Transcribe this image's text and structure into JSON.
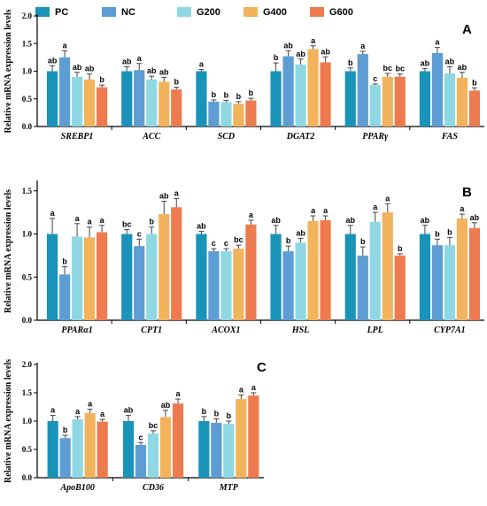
{
  "legend": {
    "items": [
      {
        "label": "PC",
        "color": "#1a93b8"
      },
      {
        "label": "NC",
        "color": "#5d9dd4"
      },
      {
        "label": "G200",
        "color": "#8fd8e3"
      },
      {
        "label": "G400",
        "color": "#f2b35c"
      },
      {
        "label": "G600",
        "color": "#ee7b4f"
      }
    ]
  },
  "chart_data": [
    {
      "panel": "A",
      "type": "bar",
      "ylabel": "Relative mRNA expression levels",
      "ylim": [
        0,
        2.0
      ],
      "yticks": [
        "0.0",
        "0.5",
        "1.0",
        "1.5",
        "2.0"
      ],
      "ytick_values": [
        0,
        0.5,
        1.0,
        1.5,
        2.0
      ],
      "categories": [
        "SREBP1",
        "ACC",
        "SCD",
        "DGAT2",
        "PPARγ",
        "FAS"
      ],
      "series": [
        {
          "name": "PC",
          "values": [
            1.0,
            1.0,
            1.0,
            1.0,
            1.0,
            1.0
          ],
          "errors": [
            0.1,
            0.08,
            0.03,
            0.15,
            0.06,
            0.05
          ]
        },
        {
          "name": "NC",
          "values": [
            1.25,
            1.02,
            0.45,
            1.27,
            1.31,
            1.33
          ],
          "errors": [
            0.12,
            0.12,
            0.03,
            0.1,
            0.05,
            0.1
          ]
        },
        {
          "name": "G200",
          "values": [
            0.9,
            0.85,
            0.44,
            1.12,
            0.75,
            0.96
          ],
          "errors": [
            0.08,
            0.06,
            0.03,
            0.1,
            0.02,
            0.12
          ]
        },
        {
          "name": "G400",
          "values": [
            0.85,
            0.81,
            0.41,
            1.4,
            0.9,
            0.88
          ],
          "errors": [
            0.1,
            0.08,
            0.04,
            0.06,
            0.06,
            0.1
          ]
        },
        {
          "name": "G600",
          "values": [
            0.71,
            0.67,
            0.47,
            1.16,
            0.9,
            0.65
          ],
          "errors": [
            0.04,
            0.04,
            0.04,
            0.1,
            0.05,
            0.05
          ]
        }
      ],
      "letters": [
        [
          "ab",
          "a",
          "ab",
          "ab",
          "b"
        ],
        [
          "ab",
          "a",
          "ab",
          "ab",
          "b"
        ],
        [
          "a",
          "b",
          "b",
          "b",
          "b"
        ],
        [
          "b",
          "ab",
          "ab",
          "a",
          "ab"
        ],
        [
          "b",
          "a",
          "c",
          "bc",
          "bc"
        ],
        [
          "ab",
          "a",
          "ab",
          "ab",
          "b"
        ]
      ]
    },
    {
      "panel": "B",
      "type": "bar",
      "ylabel": "Relative mRNA expression levels",
      "ylim": [
        0,
        1.6
      ],
      "yticks": [
        "0.0",
        "0.5",
        "1.0",
        "1.5"
      ],
      "ytick_values": [
        0,
        0.5,
        1.0,
        1.5
      ],
      "categories": [
        "PPARα1",
        "CPT1",
        "ACOX1",
        "HSL",
        "LPL",
        "CYP7A1"
      ],
      "series": [
        {
          "name": "PC",
          "values": [
            1.0,
            1.0,
            1.0,
            1.0,
            1.0,
            1.0
          ],
          "errors": [
            0.18,
            0.05,
            0.03,
            0.1,
            0.1,
            0.1
          ]
        },
        {
          "name": "NC",
          "values": [
            0.53,
            0.86,
            0.8,
            0.8,
            0.75,
            0.87
          ],
          "errors": [
            0.09,
            0.08,
            0.03,
            0.06,
            0.1,
            0.07
          ]
        },
        {
          "name": "G200",
          "values": [
            0.97,
            1.0,
            0.8,
            0.9,
            1.14,
            0.87
          ],
          "errors": [
            0.15,
            0.08,
            0.03,
            0.05,
            0.11,
            0.09
          ]
        },
        {
          "name": "G400",
          "values": [
            0.96,
            1.23,
            0.83,
            1.15,
            1.25,
            1.18
          ],
          "errors": [
            0.12,
            0.15,
            0.04,
            0.06,
            0.1,
            0.05
          ]
        },
        {
          "name": "G600",
          "values": [
            1.02,
            1.31,
            1.11,
            1.16,
            0.75,
            1.07
          ],
          "errors": [
            0.08,
            0.1,
            0.05,
            0.05,
            0.02,
            0.06
          ]
        }
      ],
      "letters": [
        [
          "a",
          "b",
          "a",
          "a",
          "a"
        ],
        [
          "bc",
          "c",
          "b",
          "ab",
          "a"
        ],
        [
          "ab",
          "c",
          "c",
          "bc",
          "a"
        ],
        [
          "ab",
          "b",
          "ab",
          "a",
          "a"
        ],
        [
          "ab",
          "b",
          "a",
          "a",
          "b"
        ],
        [
          "ab",
          "b",
          "b",
          "a",
          "ab"
        ]
      ]
    },
    {
      "panel": "C",
      "type": "bar",
      "ylabel": "Relative mRNA expression levels",
      "ylim": [
        0,
        2.0
      ],
      "yticks": [
        "0.0",
        "0.5",
        "1.0",
        "1.5",
        "2.0"
      ],
      "ytick_values": [
        0,
        0.5,
        1.0,
        1.5,
        2.0
      ],
      "categories": [
        "ApoB100",
        "CD36",
        "MTP"
      ],
      "series": [
        {
          "name": "PC",
          "values": [
            1.0,
            1.0,
            1.0
          ],
          "errors": [
            0.1,
            0.1,
            0.08
          ]
        },
        {
          "name": "NC",
          "values": [
            0.7,
            0.58,
            0.97
          ],
          "errors": [
            0.05,
            0.04,
            0.07
          ]
        },
        {
          "name": "G200",
          "values": [
            1.03,
            0.78,
            0.95
          ],
          "errors": [
            0.05,
            0.05,
            0.05
          ]
        },
        {
          "name": "G400",
          "values": [
            1.14,
            1.07,
            1.39
          ],
          "errors": [
            0.07,
            0.12,
            0.07
          ]
        },
        {
          "name": "G600",
          "values": [
            0.99,
            1.31,
            1.45
          ],
          "errors": [
            0.04,
            0.08,
            0.05
          ]
        }
      ],
      "letters": [
        [
          "a",
          "b",
          "a",
          "a",
          "a"
        ],
        [
          "ab",
          "c",
          "bc",
          "ab",
          "a"
        ],
        [
          "b",
          "b",
          "b",
          "a",
          "a"
        ]
      ]
    }
  ]
}
